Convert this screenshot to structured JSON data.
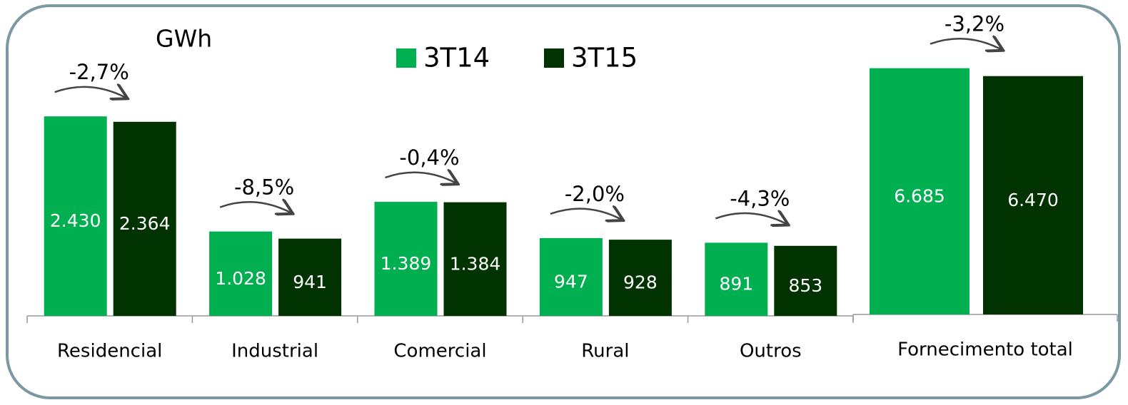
{
  "chart_data": [
    {
      "type": "bar",
      "title": "GWh",
      "categories": [
        "Residencial",
        "Industrial",
        "Comercial",
        "Rural",
        "Outros"
      ],
      "series": [
        {
          "name": "3T14",
          "color": "#00b050",
          "values": [
            2430,
            1028,
            1389,
            947,
            891
          ],
          "value_labels": [
            "2.430",
            "1.028",
            "1.389",
            "947",
            "891"
          ]
        },
        {
          "name": "3T15",
          "color": "#003300",
          "values": [
            2364,
            941,
            1384,
            928,
            853
          ],
          "value_labels": [
            "2.364",
            "941",
            "1.384",
            "928",
            "853"
          ]
        }
      ],
      "annotations": [
        "-2,7%",
        "-8,5%",
        "-0,4%",
        "-2,0%",
        "-4,3%"
      ],
      "ylim": [
        0,
        3500
      ]
    },
    {
      "type": "bar",
      "categories": [
        "Fornecimento total"
      ],
      "series": [
        {
          "color": "#00b050",
          "values": [
            6685
          ],
          "value_labels": [
            "6.685"
          ]
        },
        {
          "color": "#003300",
          "values": [
            6470
          ],
          "value_labels": [
            "6.470"
          ]
        }
      ],
      "annotations": [
        "-3,2%"
      ],
      "ylim": [
        0,
        7800
      ]
    }
  ]
}
